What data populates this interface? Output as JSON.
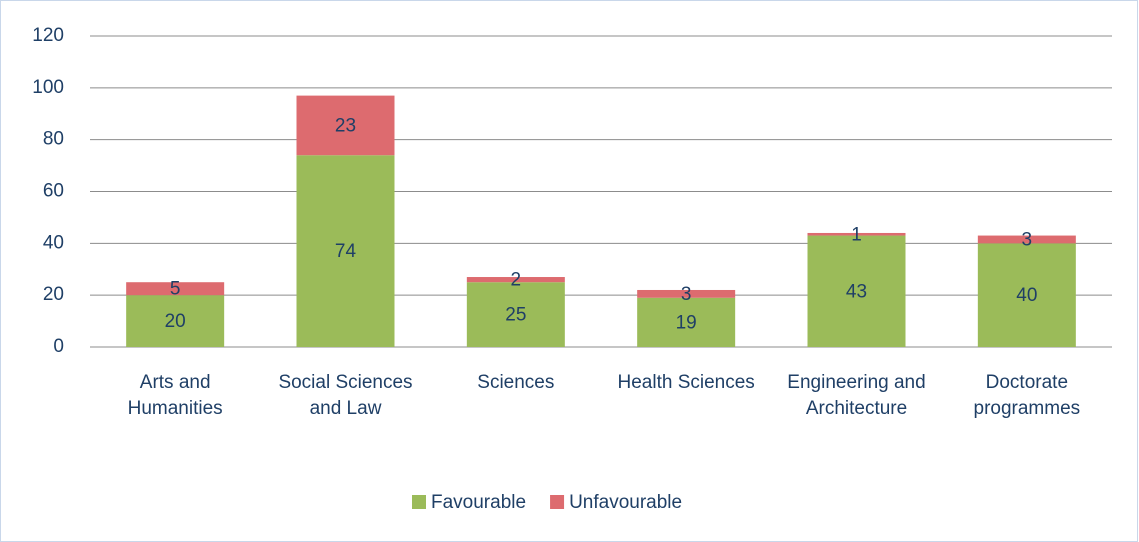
{
  "chart_data": {
    "type": "stacked_bar",
    "categories": [
      "Arts and Humanities",
      "Social Sciences and Law",
      "Sciences",
      "Health Sciences",
      "Engineering and Architecture",
      "Doctorate programmes"
    ],
    "series": [
      {
        "name": "Favourable",
        "color": "#9bbb59",
        "values": [
          20,
          74,
          25,
          19,
          43,
          40
        ]
      },
      {
        "name": "Unfavourable",
        "color": "#dd6b6f",
        "values": [
          5,
          23,
          2,
          3,
          1,
          3
        ]
      }
    ],
    "ylim": [
      0,
      120
    ],
    "yticks": [
      0,
      20,
      40,
      60,
      80,
      100,
      120
    ],
    "grid": true,
    "legend": "bottom"
  }
}
